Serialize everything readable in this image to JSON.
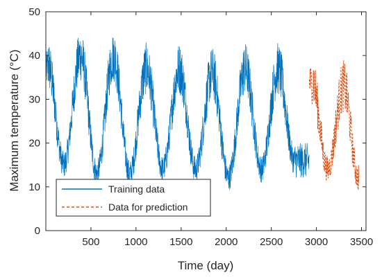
{
  "chart_data": {
    "type": "line",
    "title": "",
    "xlabel": "Time (day)",
    "ylabel": "Maximum temperature (°C)",
    "xlim": [
      0,
      3550
    ],
    "ylim": [
      0,
      50
    ],
    "x_ticks": [
      500,
      1000,
      1500,
      2000,
      2500,
      3000,
      3500
    ],
    "y_ticks": [
      0,
      10,
      20,
      30,
      40,
      50
    ],
    "grid": false,
    "legend_position": "bottom-left",
    "series": [
      {
        "name": "Training data",
        "color": "#0072BD",
        "style": "solid",
        "x_range": [
          1,
          2920
        ],
        "peaks": [
          {
            "day": 20,
            "temp": 41
          },
          {
            "day": 385,
            "temp": 43
          },
          {
            "day": 750,
            "temp": 43
          },
          {
            "day": 1115,
            "temp": 40
          },
          {
            "day": 1480,
            "temp": 40
          },
          {
            "day": 1845,
            "temp": 39
          },
          {
            "day": 2210,
            "temp": 40
          },
          {
            "day": 2575,
            "temp": 40
          }
        ],
        "troughs": [
          {
            "day": 200,
            "temp": 12
          },
          {
            "day": 565,
            "temp": 10
          },
          {
            "day": 930,
            "temp": 10
          },
          {
            "day": 1295,
            "temp": 11
          },
          {
            "day": 1660,
            "temp": 11
          },
          {
            "day": 2025,
            "temp": 9
          },
          {
            "day": 2390,
            "temp": 11
          },
          {
            "day": 2755,
            "temp": 13
          }
        ]
      },
      {
        "name": "Data for prediction",
        "color": "#D95319",
        "style": "dashed",
        "x_range": [
          2921,
          3470
        ],
        "peaks": [
          {
            "day": 2945,
            "temp": 38
          },
          {
            "day": 3300,
            "temp": 36
          }
        ],
        "troughs": [
          {
            "day": 3125,
            "temp": 11
          },
          {
            "day": 3465,
            "temp": 9
          }
        ]
      }
    ]
  }
}
